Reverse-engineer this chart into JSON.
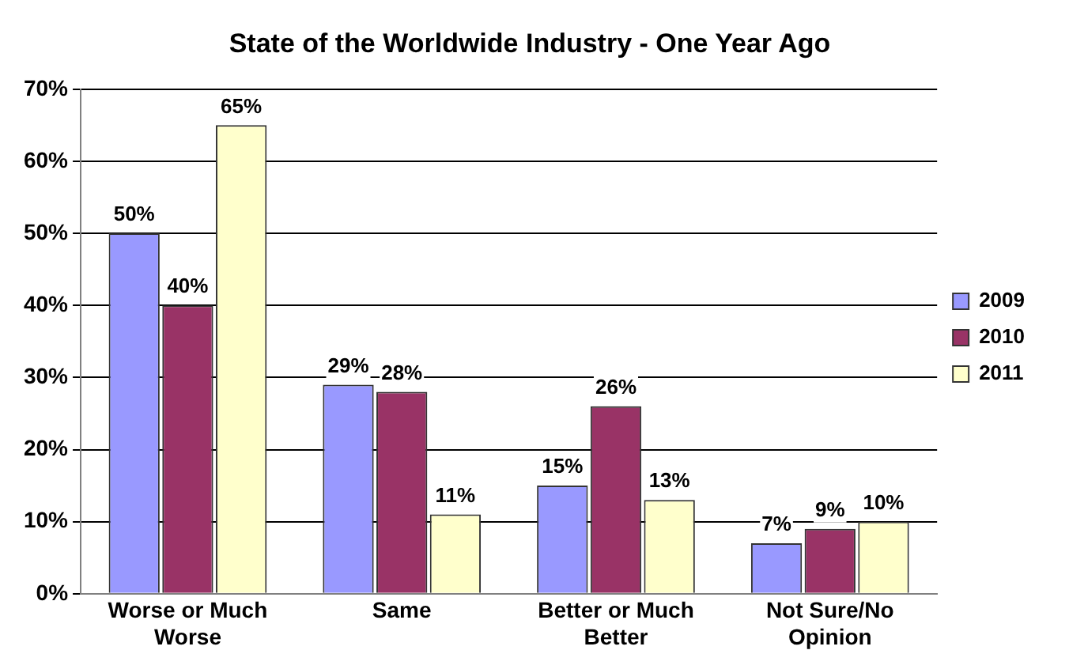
{
  "chart_data": {
    "type": "bar",
    "title": "State of the Worldwide Industry - One Year Ago",
    "categories": [
      "Worse or Much Worse",
      "Same",
      "Better or Much Better",
      "Not Sure/No Opinion"
    ],
    "series": [
      {
        "name": "2009",
        "color": "#9999ff",
        "values": [
          50,
          29,
          15,
          7
        ],
        "value_labels": [
          "50%",
          "29%",
          "15%",
          "7%"
        ]
      },
      {
        "name": "2010",
        "color": "#993366",
        "values": [
          40,
          28,
          26,
          9
        ],
        "value_labels": [
          "40%",
          "28%",
          "26%",
          "9%"
        ]
      },
      {
        "name": "2011",
        "color": "#ffffcc",
        "values": [
          65,
          11,
          13,
          10
        ],
        "value_labels": [
          "65%",
          "11%",
          "13%",
          "10%"
        ]
      }
    ],
    "ylim": [
      0,
      70
    ],
    "yticks": [
      {
        "value": 0,
        "label": "0%"
      },
      {
        "value": 10,
        "label": "10%"
      },
      {
        "value": 20,
        "label": "20%"
      },
      {
        "value": 30,
        "label": "30%"
      },
      {
        "value": 40,
        "label": "40%"
      },
      {
        "value": 50,
        "label": "50%"
      },
      {
        "value": 60,
        "label": "60%"
      },
      {
        "value": 70,
        "label": "70%"
      }
    ],
    "grid": "y",
    "legend": "right"
  }
}
